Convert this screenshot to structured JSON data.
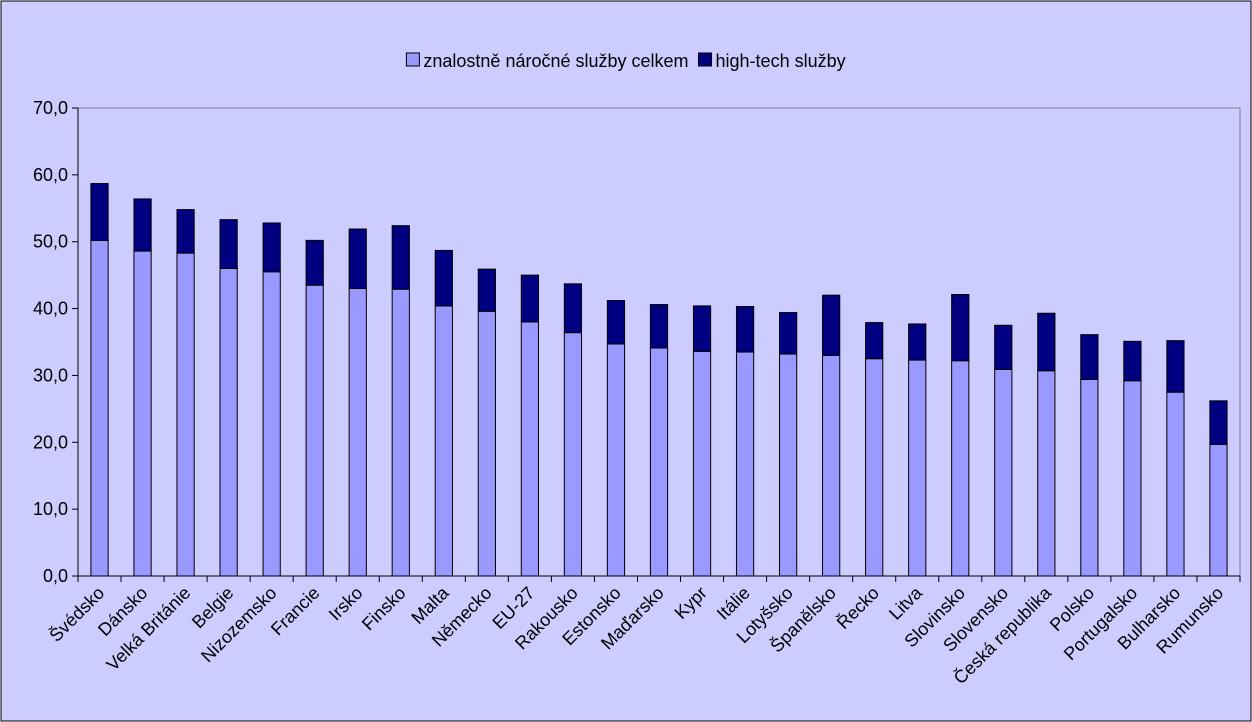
{
  "chart_data": {
    "type": "stacked_bar",
    "categories": [
      "Švédsko",
      "Dánsko",
      "Velká Británie",
      "Belgie",
      "Nizozemsko",
      "Francie",
      "Irsko",
      "Finsko",
      "Malta",
      "Německo",
      "EU-27",
      "Rakousko",
      "Estonsko",
      "Maďarsko",
      "Kypr",
      "Itálie",
      "Lotyšsko",
      "Španělsko",
      "Řecko",
      "Litva",
      "Slovinsko",
      "Slovensko",
      "Česká republika",
      "Polsko",
      "Portugalsko",
      "Bulharsko",
      "Rumunsko"
    ],
    "series": [
      {
        "name": "znalostně náročné služby celkem",
        "color": "#9999ff",
        "values": [
          50.2,
          48.6,
          48.3,
          46.0,
          45.5,
          43.5,
          43.0,
          42.9,
          40.4,
          39.6,
          38.0,
          36.4,
          34.7,
          34.1,
          33.6,
          33.5,
          33.2,
          33.0,
          32.5,
          32.3,
          32.2,
          30.9,
          30.7,
          29.4,
          29.2,
          27.5,
          19.7
        ]
      },
      {
        "name": "high-tech služby",
        "color": "#000080",
        "values": [
          8.5,
          7.8,
          6.5,
          7.3,
          7.3,
          6.7,
          8.9,
          9.5,
          8.3,
          6.3,
          7.0,
          7.3,
          6.5,
          6.5,
          6.8,
          6.8,
          6.2,
          9.0,
          5.4,
          5.4,
          9.9,
          6.6,
          8.6,
          6.7,
          5.9,
          7.7,
          6.5
        ]
      }
    ],
    "ylim": [
      0,
      70
    ],
    "yticks": [
      {
        "value": 0,
        "label": "0,0"
      },
      {
        "value": 10,
        "label": "10,0"
      },
      {
        "value": 20,
        "label": "20,0"
      },
      {
        "value": 30,
        "label": "30,0"
      },
      {
        "value": 40,
        "label": "40,0"
      },
      {
        "value": 50,
        "label": "50,0"
      },
      {
        "value": 60,
        "label": "60,0"
      },
      {
        "value": 70,
        "label": "70,0"
      }
    ],
    "grid": false,
    "legend": "top"
  }
}
